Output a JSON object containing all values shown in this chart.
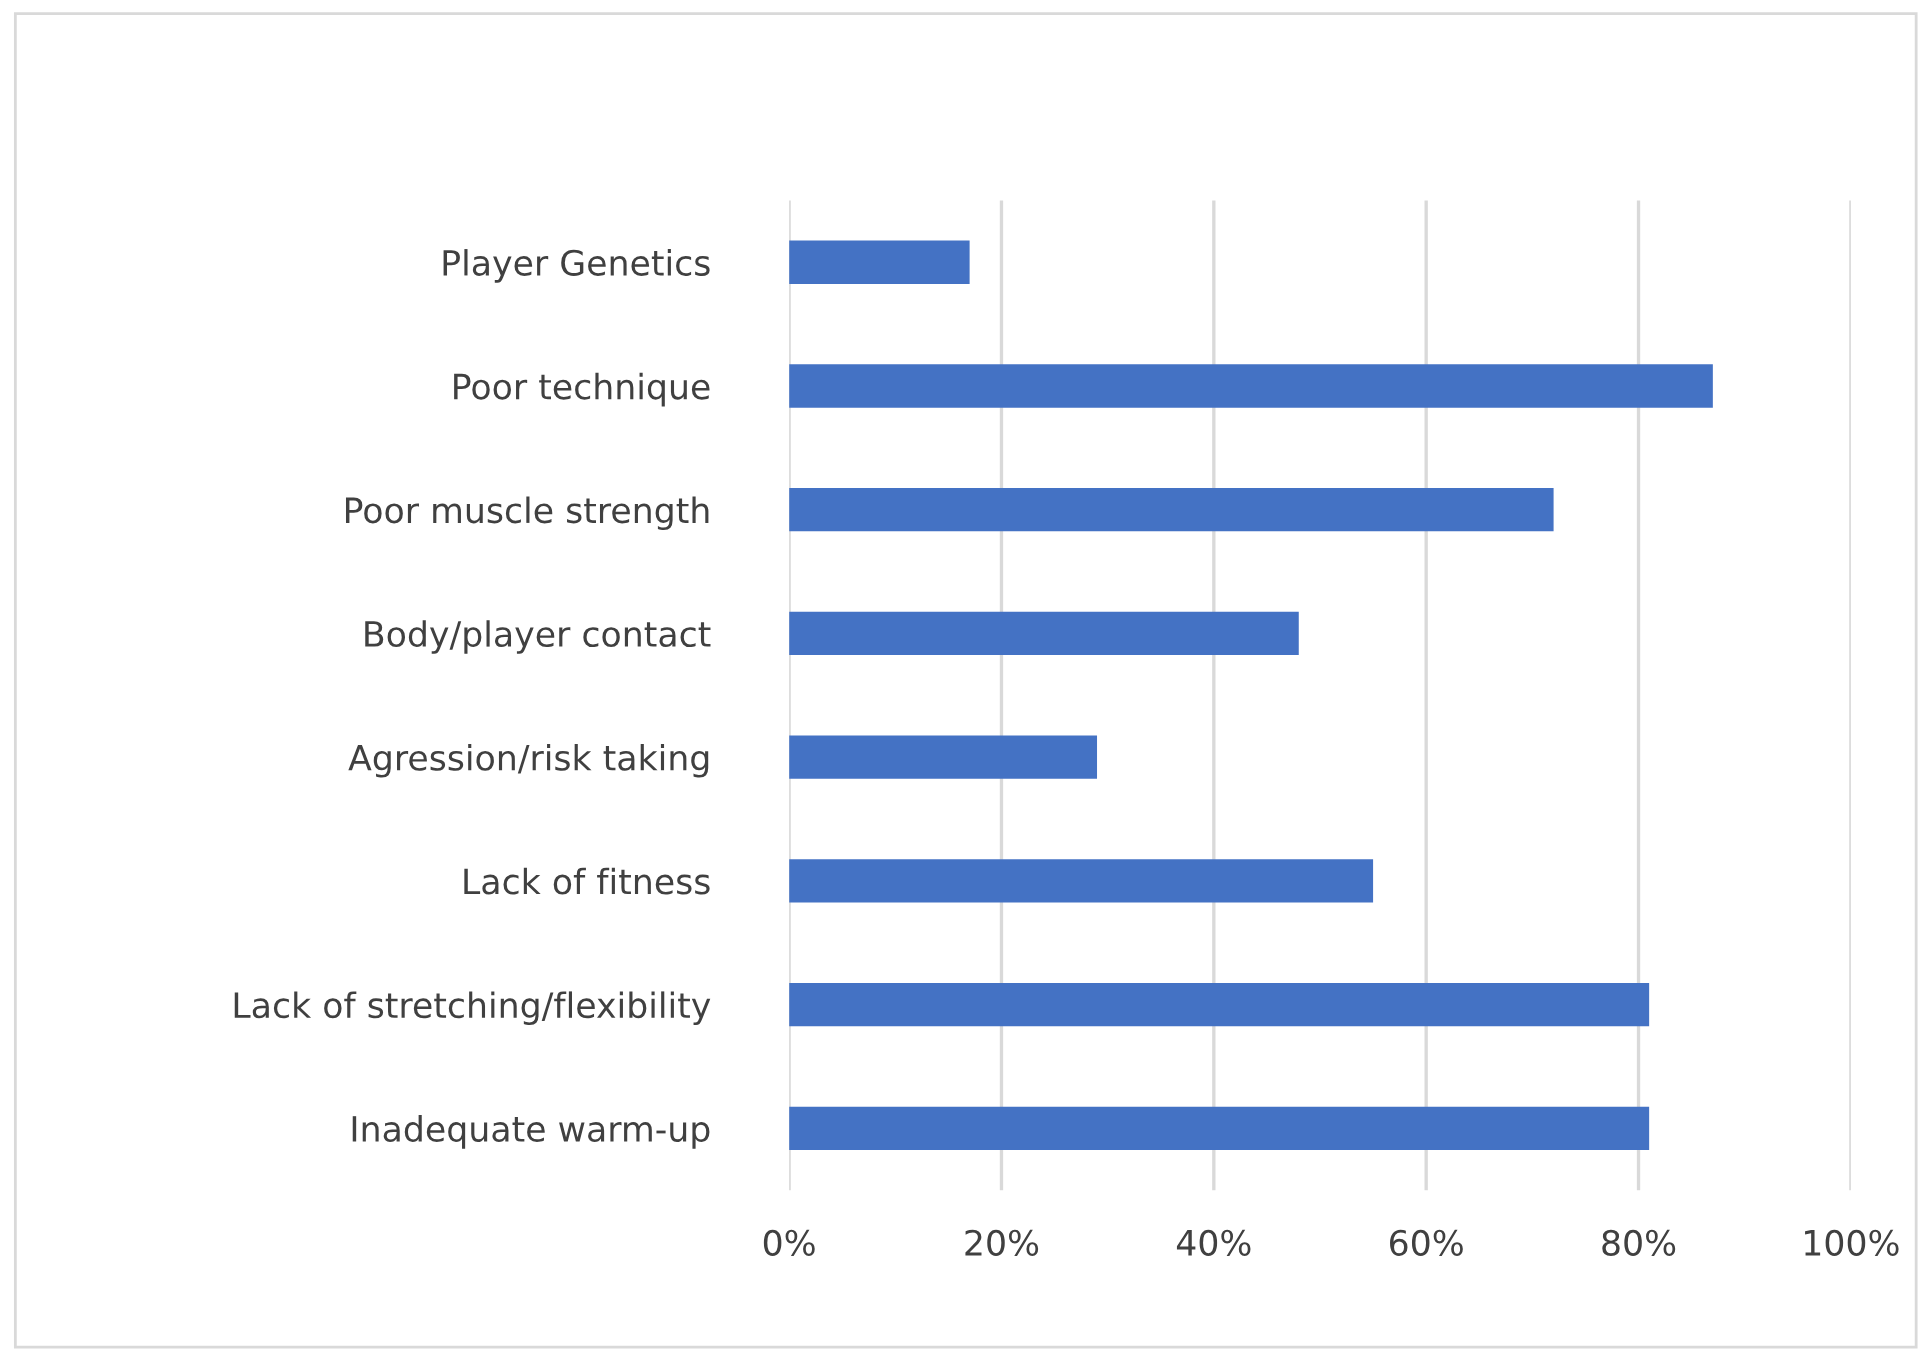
{
  "chart_data": {
    "type": "bar",
    "orientation": "horizontal",
    "categories": [
      "Player Genetics",
      "Poor technique",
      "Poor muscle strength",
      "Body/player contact",
      "Agression/risk taking",
      "Lack of fitness",
      "Lack of stretching/flexibility",
      "Inadequate warm-up"
    ],
    "values": [
      17,
      87,
      72,
      48,
      29,
      55,
      81,
      81
    ],
    "color": "#4472c4",
    "xlim": [
      0,
      100
    ],
    "xticks": [
      {
        "value": 0,
        "label": "0%"
      },
      {
        "value": 20,
        "label": "20%"
      },
      {
        "value": 40,
        "label": "40%"
      },
      {
        "value": 60,
        "label": "60%"
      },
      {
        "value": 80,
        "label": "80%"
      },
      {
        "value": 100,
        "label": "100%"
      }
    ],
    "grid": "x"
  }
}
